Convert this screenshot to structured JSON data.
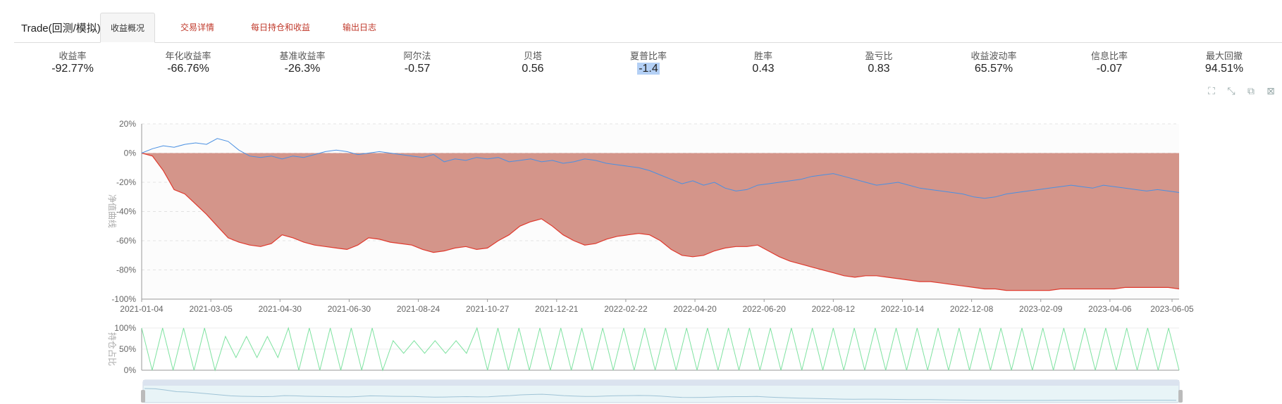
{
  "header": {
    "app_title": "Trade(回测/模拟)",
    "tabs": [
      {
        "label": "收益概况",
        "active": true
      },
      {
        "label": "交易详情",
        "active": false
      },
      {
        "label": "每日持仓和收益",
        "active": false
      },
      {
        "label": "输出日志",
        "active": false
      }
    ]
  },
  "metrics": [
    {
      "label": "收益率",
      "value": "-92.77%"
    },
    {
      "label": "年化收益率",
      "value": "-66.76%"
    },
    {
      "label": "基准收益率",
      "value": "-26.3%"
    },
    {
      "label": "阿尔法",
      "value": "-0.57"
    },
    {
      "label": "贝塔",
      "value": "0.56"
    },
    {
      "label": "夏普比率",
      "value": "-1.4",
      "highlighted": true
    },
    {
      "label": "胜率",
      "value": "0.43"
    },
    {
      "label": "盈亏比",
      "value": "0.83"
    },
    {
      "label": "收益波动率",
      "value": "65.57%"
    },
    {
      "label": "信息比率",
      "value": "-0.07"
    },
    {
      "label": "最大回撤",
      "value": "94.51%"
    }
  ],
  "toolbox": [
    "zoom-icon",
    "zoom-reset-icon",
    "restore-icon",
    "save-icon"
  ],
  "colors": {
    "strategy_fill": "#d4958a",
    "strategy_line": "#e03a2e",
    "benchmark_line": "#4a90e2",
    "position_line": "#7ee2a0",
    "accent_tab": "#c0392b"
  },
  "chart_data": [
    {
      "type": "area",
      "ylabel": "净值曲线",
      "ylim": [
        -100,
        20
      ],
      "yticks": [
        "20%",
        "0%",
        "-20%",
        "-40%",
        "-60%",
        "-80%",
        "-100%"
      ],
      "xticks": [
        "2021-01-04",
        "2021-03-05",
        "2021-04-30",
        "2021-06-30",
        "2021-08-24",
        "2021-10-27",
        "2021-12-21",
        "2022-02-22",
        "2022-04-20",
        "2022-06-20",
        "2022-08-12",
        "2022-10-14",
        "2022-12-08",
        "2023-02-09",
        "2023-04-06",
        "2023-06-05"
      ],
      "grid": true,
      "series": [
        {
          "name": "strategy",
          "style": "area",
          "values": [
            0,
            -2,
            -12,
            -25,
            -28,
            -35,
            -42,
            -50,
            -58,
            -61,
            -63,
            -64,
            -62,
            -56,
            -58,
            -61,
            -63,
            -64,
            -65,
            -66,
            -63,
            -58,
            -59,
            -61,
            -62,
            -63,
            -66,
            -68,
            -67,
            -65,
            -64,
            -66,
            -65,
            -60,
            -56,
            -50,
            -47,
            -45,
            -50,
            -56,
            -60,
            -63,
            -62,
            -59,
            -57,
            -56,
            -55,
            -56,
            -60,
            -66,
            -70,
            -71,
            -70,
            -67,
            -65,
            -64,
            -64,
            -63,
            -67,
            -71,
            -74,
            -76,
            -78,
            -80,
            -82,
            -84,
            -85,
            -84,
            -84,
            -85,
            -86,
            -87,
            -88,
            -88,
            -89,
            -90,
            -91,
            -92,
            -93,
            -93,
            -94,
            -94,
            -94,
            -94,
            -94,
            -93,
            -93,
            -93,
            -93,
            -93,
            -93,
            -92,
            -92,
            -92,
            -92,
            -92,
            -93
          ]
        },
        {
          "name": "benchmark",
          "style": "line",
          "values": [
            0,
            3,
            5,
            4,
            6,
            7,
            6,
            10,
            8,
            2,
            -2,
            -3,
            -2,
            -4,
            -2,
            -3,
            -1,
            1,
            2,
            1,
            -1,
            0,
            1,
            0,
            -1,
            -2,
            -3,
            -1,
            -6,
            -4,
            -5,
            -3,
            -4,
            -3,
            -6,
            -5,
            -4,
            -6,
            -5,
            -7,
            -6,
            -4,
            -5,
            -7,
            -8,
            -9,
            -10,
            -12,
            -15,
            -18,
            -21,
            -19,
            -22,
            -20,
            -24,
            -26,
            -25,
            -22,
            -21,
            -20,
            -19,
            -18,
            -16,
            -15,
            -14,
            -16,
            -18,
            -20,
            -22,
            -21,
            -20,
            -22,
            -24,
            -25,
            -26,
            -27,
            -28,
            -30,
            -31,
            -30,
            -28,
            -27,
            -26,
            -25,
            -24,
            -23,
            -22,
            -23,
            -24,
            -22,
            -23,
            -24,
            -25,
            -26,
            -25,
            -26,
            -27
          ]
        }
      ]
    },
    {
      "type": "line",
      "ylabel": "持仓占比",
      "ylim": [
        0,
        100
      ],
      "yticks": [
        "100%",
        "50%",
        "0%"
      ],
      "series": [
        {
          "name": "position",
          "values": [
            100,
            0,
            100,
            0,
            100,
            0,
            100,
            0,
            80,
            30,
            80,
            30,
            80,
            30,
            100,
            0,
            100,
            0,
            100,
            0,
            100,
            0,
            100,
            0,
            70,
            40,
            70,
            40,
            70,
            40,
            70,
            40,
            100,
            0,
            100,
            0,
            100,
            0,
            100,
            0,
            100,
            0,
            100,
            0,
            100,
            0,
            100,
            0,
            100,
            0,
            100,
            0,
            100,
            0,
            100,
            0,
            100,
            0,
            100,
            0,
            100,
            0,
            100,
            0,
            100,
            0,
            100,
            0,
            100,
            0,
            100,
            0,
            100,
            0,
            100,
            0,
            100,
            0,
            100,
            0,
            100,
            0,
            100,
            0,
            100,
            0,
            100,
            0,
            100,
            0,
            100,
            0,
            100,
            0,
            100,
            0,
            100,
            0,
            100,
            0
          ]
        }
      ]
    }
  ]
}
